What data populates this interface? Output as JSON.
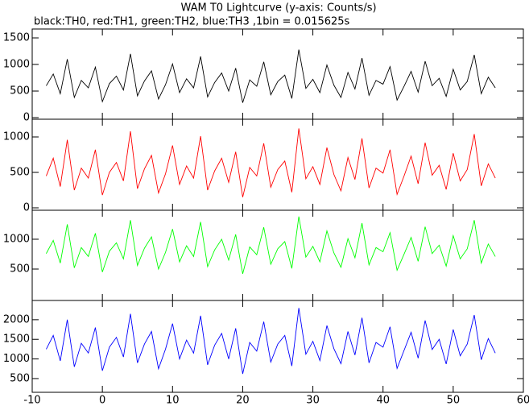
{
  "chart_data": [
    {
      "type": "line",
      "title": "WAM T0 Lightcurve (y-axis: Counts/s)",
      "subtitle": "black:TH0, red:TH1, green:TH2, blue:TH3 ,1bin = 0.015625s",
      "x": [
        -8,
        -7,
        -6,
        -5,
        -4,
        -3,
        -2,
        -1,
        0,
        1,
        2,
        3,
        4,
        5,
        6,
        7,
        8,
        9,
        10,
        11,
        12,
        13,
        14,
        15,
        16,
        17,
        18,
        19,
        20,
        21,
        22,
        23,
        24,
        25,
        26,
        27,
        28,
        29,
        30,
        31,
        32,
        33,
        34,
        35,
        36,
        37,
        38,
        39,
        40,
        41,
        42,
        43,
        44,
        45,
        46,
        47,
        48,
        49,
        50,
        51,
        52,
        53,
        54,
        55,
        56
      ],
      "xlim": [
        -10,
        60
      ],
      "ylim": [
        -30,
        1667
      ],
      "yticks": [
        0,
        500,
        1000,
        1500
      ],
      "series": [
        {
          "name": "TH0",
          "color": "#000000",
          "values": [
            600,
            820,
            450,
            1100,
            380,
            700,
            560,
            950,
            300,
            640,
            780,
            520,
            1200,
            410,
            690,
            880,
            350,
            620,
            1010,
            470,
            730,
            560,
            1150,
            390,
            660,
            840,
            500,
            930,
            280,
            710,
            590,
            1050,
            430,
            680,
            800,
            360,
            1280,
            550,
            720,
            470,
            990,
            610,
            380,
            850,
            540,
            1120,
            420,
            700,
            630,
            960,
            330,
            590,
            870,
            480,
            1060,
            600,
            740,
            400,
            910,
            520,
            680,
            1180,
            450,
            760,
            560
          ]
        }
      ]
    },
    {
      "type": "line",
      "x": [
        -8,
        -7,
        -6,
        -5,
        -4,
        -3,
        -2,
        -1,
        0,
        1,
        2,
        3,
        4,
        5,
        6,
        7,
        8,
        9,
        10,
        11,
        12,
        13,
        14,
        15,
        16,
        17,
        18,
        19,
        20,
        21,
        22,
        23,
        24,
        25,
        26,
        27,
        28,
        29,
        30,
        31,
        32,
        33,
        34,
        35,
        36,
        37,
        38,
        39,
        40,
        41,
        42,
        43,
        44,
        45,
        46,
        47,
        48,
        49,
        50,
        51,
        52,
        53,
        54,
        55,
        56
      ],
      "xlim": [
        -10,
        60
      ],
      "ylim": [
        -34,
        1250
      ],
      "yticks": [
        0,
        500,
        1000
      ],
      "series": [
        {
          "name": "TH1",
          "color": "#ff0000",
          "values": [
            450,
            700,
            300,
            960,
            250,
            560,
            420,
            820,
            180,
            500,
            640,
            380,
            1080,
            270,
            550,
            740,
            210,
            480,
            880,
            330,
            590,
            420,
            1010,
            250,
            520,
            700,
            360,
            790,
            150,
            570,
            450,
            910,
            290,
            540,
            660,
            220,
            1120,
            410,
            580,
            330,
            850,
            470,
            240,
            710,
            400,
            980,
            280,
            560,
            490,
            820,
            190,
            450,
            730,
            340,
            920,
            460,
            600,
            260,
            770,
            380,
            540,
            1040,
            310,
            620,
            420
          ]
        }
      ]
    },
    {
      "type": "line",
      "x": [
        -8,
        -7,
        -6,
        -5,
        -4,
        -3,
        -2,
        -1,
        0,
        1,
        2,
        3,
        4,
        5,
        6,
        7,
        8,
        9,
        10,
        11,
        12,
        13,
        14,
        15,
        16,
        17,
        18,
        19,
        20,
        21,
        22,
        23,
        24,
        25,
        26,
        27,
        28,
        29,
        30,
        31,
        32,
        33,
        34,
        35,
        36,
        37,
        38,
        39,
        40,
        41,
        42,
        43,
        44,
        45,
        46,
        47,
        48,
        49,
        50,
        51,
        52,
        53,
        54,
        55,
        56
      ],
      "xlim": [
        -10,
        60
      ],
      "ylim": [
        -27,
        1486
      ],
      "yticks": [
        500,
        1000
      ],
      "series": [
        {
          "name": "TH2",
          "color": "#00ff00",
          "values": [
            760,
            980,
            600,
            1250,
            520,
            860,
            710,
            1100,
            450,
            800,
            940,
            670,
            1320,
            560,
            850,
            1040,
            500,
            780,
            1170,
            620,
            890,
            710,
            1290,
            540,
            820,
            1000,
            650,
            1080,
            420,
            870,
            740,
            1200,
            580,
            840,
            960,
            510,
            1380,
            700,
            880,
            620,
            1140,
            770,
            530,
            1010,
            690,
            1270,
            570,
            860,
            790,
            1110,
            480,
            750,
            1030,
            630,
            1210,
            760,
            900,
            550,
            1060,
            670,
            840,
            1320,
            600,
            920,
            710
          ]
        }
      ]
    },
    {
      "type": "line",
      "x": [
        -8,
        -7,
        -6,
        -5,
        -4,
        -3,
        -2,
        -1,
        0,
        1,
        2,
        3,
        4,
        5,
        6,
        7,
        8,
        9,
        10,
        11,
        12,
        13,
        14,
        15,
        16,
        17,
        18,
        19,
        20,
        21,
        22,
        23,
        24,
        25,
        26,
        27,
        28,
        29,
        30,
        31,
        32,
        33,
        34,
        35,
        36,
        37,
        38,
        39,
        40,
        41,
        42,
        43,
        44,
        45,
        46,
        47,
        48,
        49,
        50,
        51,
        52,
        53,
        54,
        55,
        56
      ],
      "xlim": [
        -10,
        60
      ],
      "xticks": [
        -10,
        0,
        10,
        20,
        30,
        40,
        50,
        60
      ],
      "ylim": [
        150,
        2490
      ],
      "yticks": [
        500,
        1000,
        1500,
        2000
      ],
      "series": [
        {
          "name": "TH3",
          "color": "#0000ff",
          "values": [
            1250,
            1600,
            950,
            2000,
            800,
            1400,
            1150,
            1800,
            700,
            1300,
            1550,
            1050,
            2150,
            900,
            1380,
            1700,
            750,
            1250,
            1900,
            1000,
            1480,
            1150,
            2100,
            850,
            1350,
            1650,
            1000,
            1780,
            620,
            1420,
            1200,
            1950,
            920,
            1380,
            1600,
            820,
            2300,
            1120,
            1450,
            960,
            1850,
            1260,
            880,
            1700,
            1100,
            2050,
            900,
            1420,
            1300,
            1820,
            760,
            1220,
            1680,
            1020,
            1980,
            1240,
            1500,
            870,
            1750,
            1080,
            1380,
            2120,
            980,
            1520,
            1150
          ]
        }
      ]
    }
  ]
}
